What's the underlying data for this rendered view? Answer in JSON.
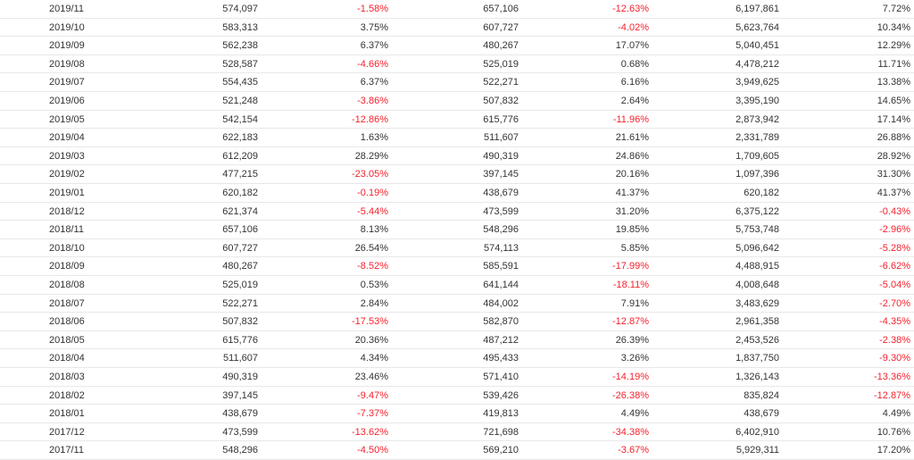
{
  "table": {
    "rows": [
      [
        "2019/11",
        "574,097",
        "-1.58%",
        "657,106",
        "-12.63%",
        "6,197,861",
        "7.72%"
      ],
      [
        "2019/10",
        "583,313",
        "3.75%",
        "607,727",
        "-4.02%",
        "5,623,764",
        "10.34%"
      ],
      [
        "2019/09",
        "562,238",
        "6.37%",
        "480,267",
        "17.07%",
        "5,040,451",
        "12.29%"
      ],
      [
        "2019/08",
        "528,587",
        "-4.66%",
        "525,019",
        "0.68%",
        "4,478,212",
        "11.71%"
      ],
      [
        "2019/07",
        "554,435",
        "6.37%",
        "522,271",
        "6.16%",
        "3,949,625",
        "13.38%"
      ],
      [
        "2019/06",
        "521,248",
        "-3.86%",
        "507,832",
        "2.64%",
        "3,395,190",
        "14.65%"
      ],
      [
        "2019/05",
        "542,154",
        "-12.86%",
        "615,776",
        "-11.96%",
        "2,873,942",
        "17.14%"
      ],
      [
        "2019/04",
        "622,183",
        "1.63%",
        "511,607",
        "21.61%",
        "2,331,789",
        "26.88%"
      ],
      [
        "2019/03",
        "612,209",
        "28.29%",
        "490,319",
        "24.86%",
        "1,709,605",
        "28.92%"
      ],
      [
        "2019/02",
        "477,215",
        "-23.05%",
        "397,145",
        "20.16%",
        "1,097,396",
        "31.30%"
      ],
      [
        "2019/01",
        "620,182",
        "-0.19%",
        "438,679",
        "41.37%",
        "620,182",
        "41.37%"
      ],
      [
        "2018/12",
        "621,374",
        "-5.44%",
        "473,599",
        "31.20%",
        "6,375,122",
        "-0.43%"
      ],
      [
        "2018/11",
        "657,106",
        "8.13%",
        "548,296",
        "19.85%",
        "5,753,748",
        "-2.96%"
      ],
      [
        "2018/10",
        "607,727",
        "26.54%",
        "574,113",
        "5.85%",
        "5,096,642",
        "-5.28%"
      ],
      [
        "2018/09",
        "480,267",
        "-8.52%",
        "585,591",
        "-17.99%",
        "4,488,915",
        "-6.62%"
      ],
      [
        "2018/08",
        "525,019",
        "0.53%",
        "641,144",
        "-18.11%",
        "4,008,648",
        "-5.04%"
      ],
      [
        "2018/07",
        "522,271",
        "2.84%",
        "484,002",
        "7.91%",
        "3,483,629",
        "-2.70%"
      ],
      [
        "2018/06",
        "507,832",
        "-17.53%",
        "582,870",
        "-12.87%",
        "2,961,358",
        "-4.35%"
      ],
      [
        "2018/05",
        "615,776",
        "20.36%",
        "487,212",
        "26.39%",
        "2,453,526",
        "-2.38%"
      ],
      [
        "2018/04",
        "511,607",
        "4.34%",
        "495,433",
        "3.26%",
        "1,837,750",
        "-9.30%"
      ],
      [
        "2018/03",
        "490,319",
        "23.46%",
        "571,410",
        "-14.19%",
        "1,326,143",
        "-13.36%"
      ],
      [
        "2018/02",
        "397,145",
        "-9.47%",
        "539,426",
        "-26.38%",
        "835,824",
        "-12.87%"
      ],
      [
        "2018/01",
        "438,679",
        "-7.37%",
        "419,813",
        "4.49%",
        "438,679",
        "4.49%"
      ],
      [
        "2017/12",
        "473,599",
        "-13.62%",
        "721,698",
        "-34.38%",
        "6,402,910",
        "10.76%"
      ],
      [
        "2017/11",
        "548,296",
        "-4.50%",
        "569,210",
        "-3.67%",
        "5,929,311",
        "17.20%"
      ]
    ]
  }
}
